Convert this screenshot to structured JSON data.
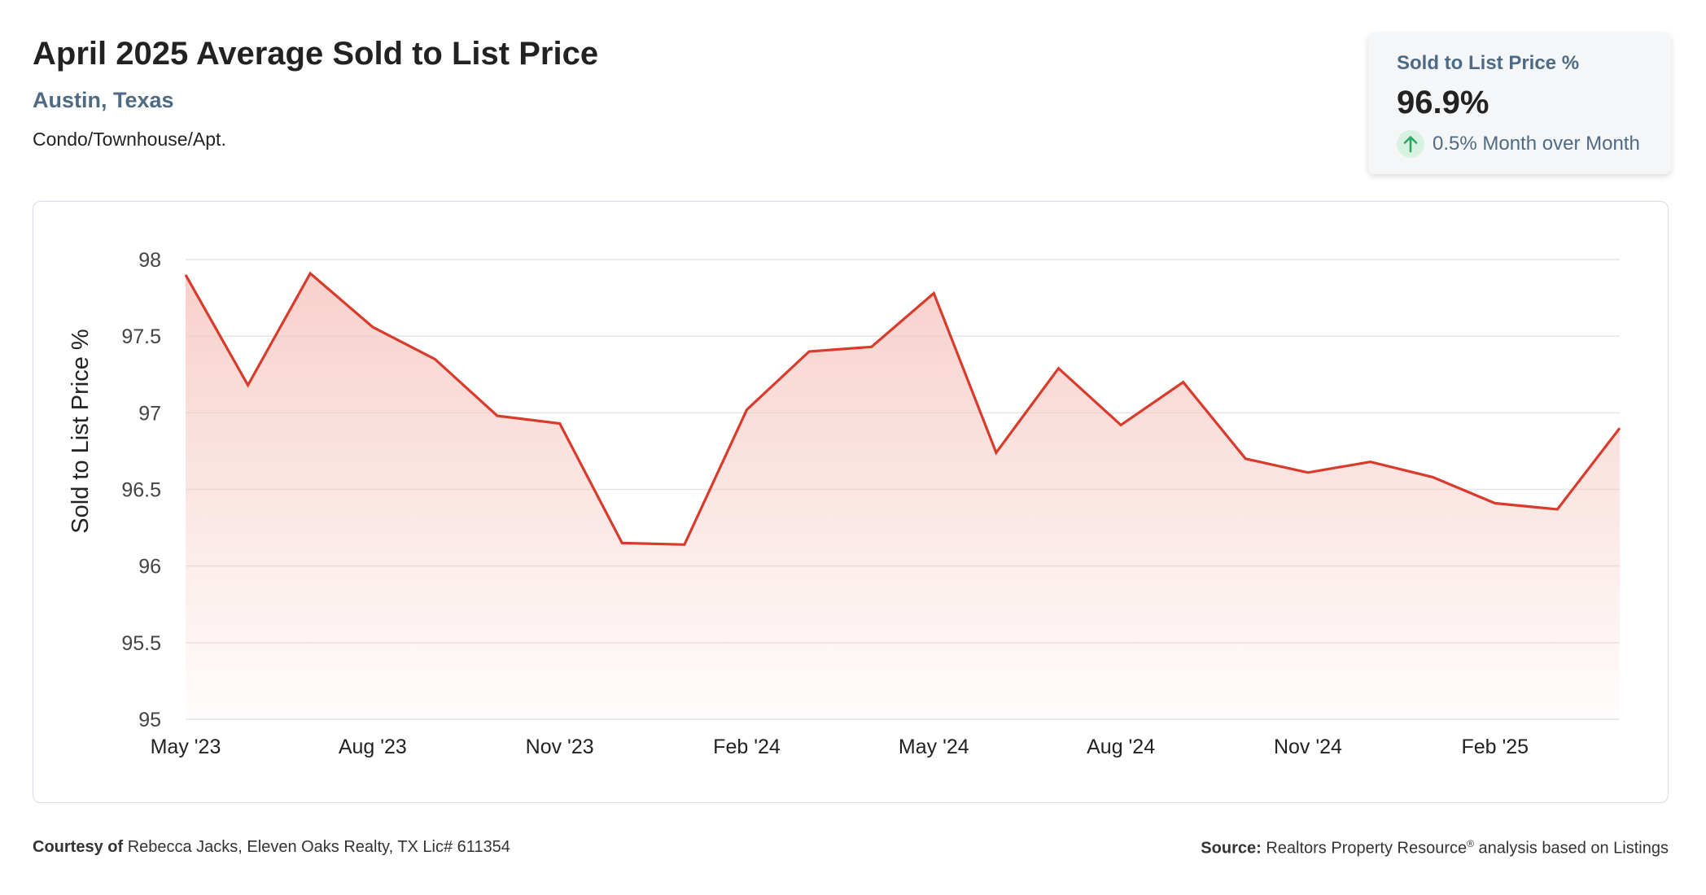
{
  "header": {
    "title": "April 2025 Average Sold to List Price",
    "location": "Austin, Texas",
    "property_type": "Condo/Townhouse/Apt."
  },
  "summary_card": {
    "label": "Sold to List Price %",
    "value": "96.9%",
    "change": "0.5% Month over Month",
    "change_direction": "up",
    "icon": "arrow-up-icon"
  },
  "footer": {
    "courtesy_label": "Courtesy of",
    "courtesy_text": "Rebecca Jacks, Eleven Oaks Realty, TX Lic# 611354",
    "source_label": "Source:",
    "source_text_1": "Realtors Property Resource",
    "source_mark": "®",
    "source_text_2": "analysis based on Listings"
  },
  "colors": {
    "line": "#d83b2b",
    "fill_top": "#f6c8c2",
    "grid": "#e4e4e4",
    "accent": "#4e6a85",
    "up_icon": "#2fa564"
  },
  "chart_data": {
    "type": "area",
    "ylabel": "Sold to List Price %",
    "xlabel": "",
    "ylim": [
      95,
      98
    ],
    "y_ticks": [
      "98",
      "97.5",
      "97",
      "96.5",
      "96",
      "95.5",
      "95"
    ],
    "x_tick_labels": [
      "May '23",
      "Aug '23",
      "Nov '23",
      "Feb '24",
      "May '24",
      "Aug '24",
      "Nov '24",
      "Feb '25"
    ],
    "x": [
      "2023-05",
      "2023-06",
      "2023-07",
      "2023-08",
      "2023-09",
      "2023-10",
      "2023-11",
      "2023-12",
      "2024-01",
      "2024-02",
      "2024-03",
      "2024-04",
      "2024-05",
      "2024-06",
      "2024-07",
      "2024-08",
      "2024-09",
      "2024-10",
      "2024-11",
      "2024-12",
      "2025-01",
      "2025-02",
      "2025-03",
      "2025-04"
    ],
    "values": [
      97.9,
      97.18,
      97.91,
      97.56,
      97.35,
      96.98,
      96.93,
      96.15,
      96.14,
      97.02,
      97.4,
      97.43,
      97.78,
      96.74,
      97.29,
      96.92,
      97.2,
      96.7,
      96.61,
      96.68,
      96.58,
      96.41,
      96.37,
      96.9
    ]
  }
}
